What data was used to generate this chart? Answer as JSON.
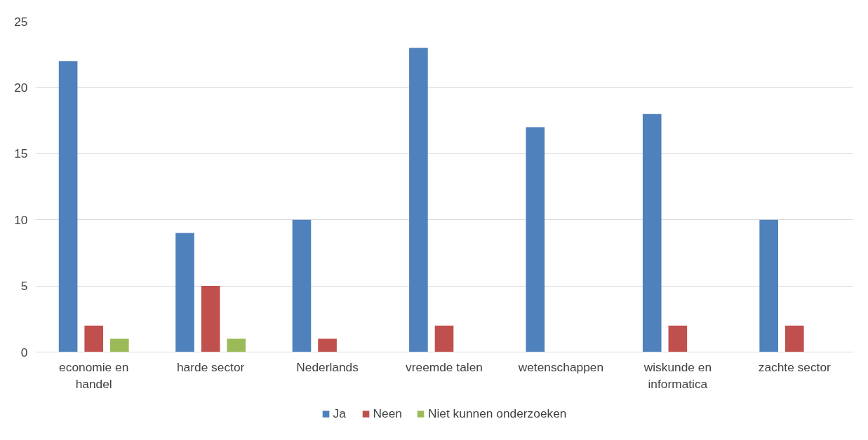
{
  "chart_data": {
    "type": "bar",
    "categories": [
      "economie en handel",
      "harde sector",
      "Nederlands",
      "vreemde talen",
      "wetenschappen",
      "wiskunde en informatica",
      "zachte sector"
    ],
    "series": [
      {
        "name": "Ja",
        "color": "#4f81bd",
        "values": [
          22,
          9,
          10,
          23,
          17,
          18,
          10
        ]
      },
      {
        "name": "Neen",
        "color": "#c0504d",
        "values": [
          2,
          5,
          1,
          2,
          null,
          2,
          2
        ]
      },
      {
        "name": "Niet kunnen onderzoeken",
        "color": "#9bbb59",
        "values": [
          1,
          1,
          null,
          null,
          null,
          null,
          null
        ]
      }
    ],
    "ylim": [
      0,
      25
    ],
    "yticks": [
      0,
      5,
      10,
      15,
      20,
      25
    ],
    "grid": "y",
    "legend": "bottom"
  }
}
